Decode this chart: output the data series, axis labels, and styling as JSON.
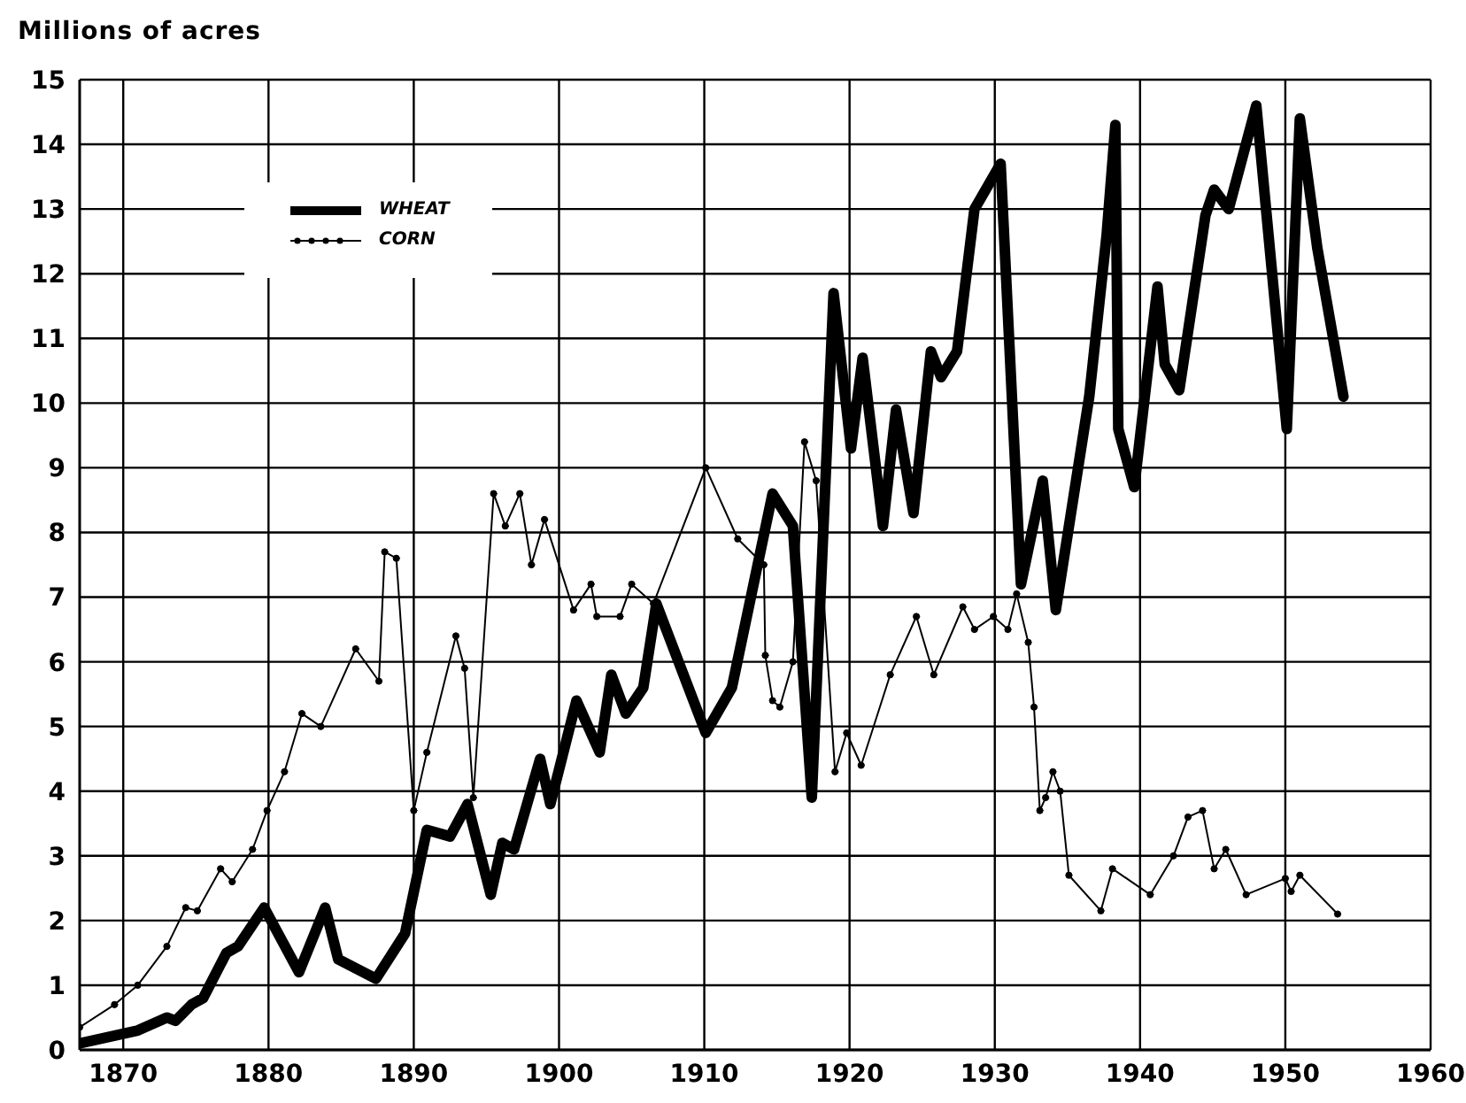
{
  "chart_data": {
    "type": "line",
    "ylabel": "Millions of acres",
    "xlim": [
      1867,
      1960
    ],
    "xticks": [
      1870,
      1880,
      1890,
      1900,
      1910,
      1920,
      1930,
      1940,
      1950,
      1960
    ],
    "ylim": [
      0,
      15
    ],
    "yticks": [
      0,
      1,
      2,
      3,
      4,
      5,
      6,
      7,
      8,
      9,
      10,
      11,
      12,
      13,
      14,
      15
    ],
    "grid": true,
    "legend": "top left",
    "line_style": "solid",
    "series": [
      {
        "name": "WHEAT",
        "color": "#000000",
        "marker": "none",
        "x": [
          1867,
          1871,
          1873,
          1873.6,
          1874.7,
          1875.5,
          1877.1,
          1877.9,
          1879.7,
          1882.1,
          1883.9,
          1884.8,
          1887.4,
          1889.4,
          1890.9,
          1892.5,
          1893.7,
          1895.3,
          1896.1,
          1896.9,
          1898.7,
          1899.4,
          1901.2,
          1902.8,
          1903.6,
          1904.6,
          1905.8,
          1906.7,
          1910.1,
          1911.9,
          1914.7,
          1916.1,
          1917.4,
          1918.9,
          1920.1,
          1920.9,
          1922.3,
          1923.2,
          1924.4,
          1925.6,
          1926.3,
          1927.4,
          1928.6,
          1930.4,
          1931.8,
          1933.3,
          1934.2,
          1936.5,
          1937.7,
          1938.3,
          1938.5,
          1939.6,
          1941.2,
          1941.7,
          1942.7,
          1944.5,
          1945.1,
          1946.1,
          1948,
          1950.1,
          1951,
          1952.2,
          1954
        ],
        "values": [
          0.1,
          0.3,
          0.5,
          0.45,
          0.7,
          0.8,
          1.5,
          1.6,
          2.2,
          1.2,
          2.2,
          1.4,
          1.1,
          1.8,
          3.4,
          3.3,
          3.8,
          2.4,
          3.2,
          3.1,
          4.5,
          3.8,
          5.4,
          4.6,
          5.8,
          5.2,
          5.6,
          6.9,
          4.9,
          5.6,
          8.6,
          8.1,
          3.9,
          11.7,
          9.3,
          10.7,
          8.1,
          9.9,
          8.3,
          10.8,
          10.4,
          10.8,
          13,
          13.7,
          7.2,
          8.8,
          6.8,
          10.1,
          12.6,
          14.3,
          9.6,
          8.7,
          11.8,
          10.6,
          10.2,
          12.9,
          13.3,
          13,
          14.6,
          9.6,
          14.4,
          12.4,
          10.1
        ]
      },
      {
        "name": "CORN",
        "color": "#000000",
        "marker": "circle",
        "x": [
          1867,
          1869.4,
          1871,
          1873,
          1874.3,
          1875.1,
          1876.7,
          1877.5,
          1878.9,
          1879.9,
          1881.1,
          1882.3,
          1883.6,
          1886,
          1887.6,
          1888,
          1888.8,
          1890,
          1890.9,
          1892.9,
          1893.5,
          1894.1,
          1895.5,
          1896.3,
          1897.3,
          1898.1,
          1899,
          1901,
          1902.2,
          1902.6,
          1904.2,
          1905,
          1906.5,
          1910.1,
          1912.3,
          1914.1,
          1914.2,
          1914.7,
          1915.2,
          1916.1,
          1916.9,
          1917.7,
          1919,
          1919.8,
          1920.8,
          1922.8,
          1924.6,
          1925.8,
          1927.8,
          1928.6,
          1929.9,
          1930.9,
          1931.5,
          1932.3,
          1932.7,
          1933.1,
          1933.5,
          1934,
          1934.5,
          1935.1,
          1937.3,
          1938.1,
          1940.7,
          1942.3,
          1943.3,
          1944.3,
          1945.1,
          1945.9,
          1947.3,
          1950,
          1950.4,
          1951,
          1953.6
        ],
        "values": [
          0.35,
          0.7,
          1,
          1.6,
          2.2,
          2.15,
          2.8,
          2.6,
          3.1,
          3.7,
          4.3,
          5.2,
          5,
          6.2,
          5.7,
          7.7,
          7.6,
          3.7,
          4.6,
          6.4,
          5.9,
          3.9,
          8.6,
          8.1,
          8.6,
          7.5,
          8.2,
          6.8,
          7.2,
          6.7,
          6.7,
          7.2,
          6.9,
          9,
          7.9,
          7.5,
          6.1,
          5.4,
          5.3,
          6,
          9.4,
          8.8,
          4.3,
          4.9,
          4.4,
          5.8,
          6.7,
          5.8,
          6.85,
          6.5,
          6.7,
          6.5,
          7.05,
          6.3,
          5.3,
          3.7,
          3.9,
          4.3,
          4,
          2.7,
          2.15,
          2.8,
          2.4,
          3,
          3.6,
          3.7,
          2.8,
          3.1,
          2.4,
          2.65,
          2.45,
          2.7,
          2.1
        ]
      }
    ]
  }
}
